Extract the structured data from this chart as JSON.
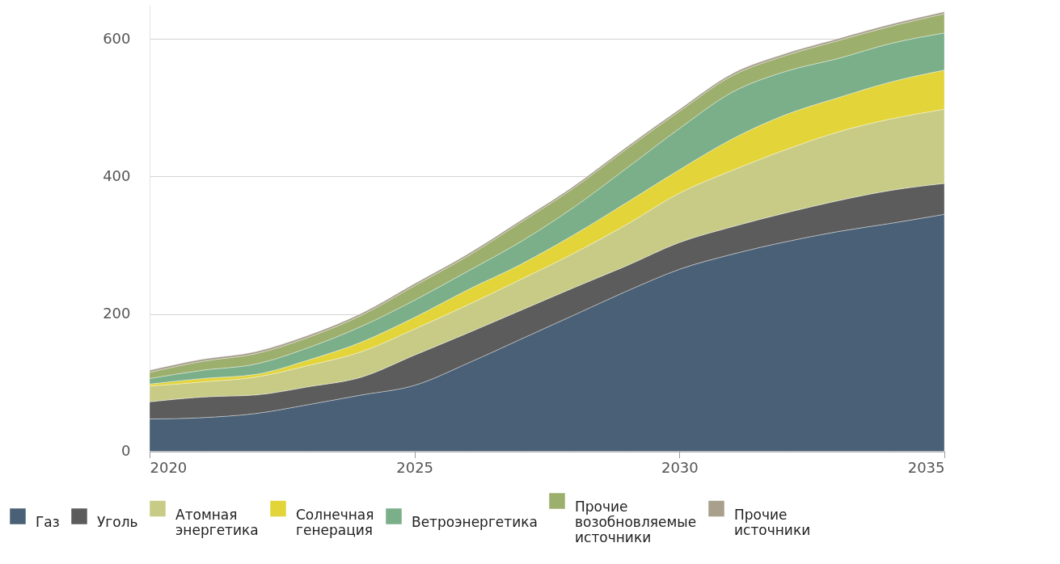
{
  "chart_data": {
    "type": "area",
    "stacked": true,
    "x": [
      2020,
      2021,
      2022,
      2023,
      2024,
      2025,
      2026,
      2027,
      2028,
      2029,
      2030,
      2031,
      2032,
      2033,
      2034,
      2035
    ],
    "series": [
      {
        "name": "Газ",
        "color": "#4a6076",
        "values": [
          47,
          49,
          55,
          68,
          82,
          96,
          128,
          163,
          198,
          233,
          265,
          287,
          305,
          320,
          332,
          345
        ]
      },
      {
        "name": "Уголь",
        "color": "#5c5c5c",
        "values": [
          25,
          30,
          27,
          26,
          26,
          44,
          44,
          42,
          40,
          37,
          39,
          40,
          42,
          45,
          48,
          45
        ]
      },
      {
        "name": "Атомная энергетика",
        "color": "#c8cb85",
        "values": [
          23,
          22,
          26,
          31,
          37,
          38,
          41,
          45,
          50,
          60,
          72,
          82,
          92,
          100,
          104,
          108
        ]
      },
      {
        "name": "Солнечная генерация",
        "color": "#e3d43a",
        "values": [
          3,
          5,
          4,
          8,
          14,
          17,
          22,
          22,
          27,
          32,
          34,
          46,
          51,
          50,
          54,
          57
        ]
      },
      {
        "name": "Ветроэнергетика",
        "color": "#7aaf8a",
        "values": [
          8,
          12,
          15,
          18,
          23,
          25,
          27,
          33,
          40,
          50,
          60,
          68,
          63,
          57,
          56,
          54
        ]
      },
      {
        "name": "Прочие возобновляемые источники",
        "color": "#9caf6c",
        "values": [
          9,
          13,
          15,
          15,
          16,
          21,
          22,
          28,
          28,
          28,
          25,
          24,
          23,
          26,
          25,
          28
        ]
      },
      {
        "name": "Прочие источники",
        "color": "#a89f8c",
        "values": [
          3,
          3,
          3,
          3,
          3,
          3,
          3,
          3,
          3,
          3,
          3,
          3,
          3,
          3,
          3,
          3
        ]
      }
    ],
    "xlim": [
      2020,
      2035
    ],
    "xticks": [
      2020,
      2025,
      2030,
      2035
    ],
    "ylim": [
      0,
      650
    ],
    "yticks": [
      0,
      200,
      400,
      600
    ],
    "grid": "y",
    "legend": "bottom"
  }
}
